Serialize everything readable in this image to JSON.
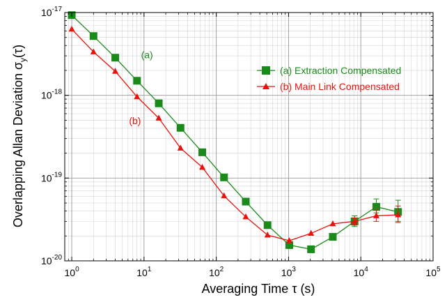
{
  "chart_data": {
    "type": "line",
    "xscale": "log",
    "yscale": "log",
    "xlim": [
      0.8,
      100000
    ],
    "ylim": [
      1e-20,
      1e-17
    ],
    "grid": true,
    "legend_position": "top-right",
    "xlabel": {
      "main": "Averaging Time ",
      "greek": "τ",
      "unit": " (s)"
    },
    "ylabel": {
      "main": "Overlapping Allan Deviation ",
      "sigma": "σ",
      "sub": "y",
      "arg": "(τ)"
    },
    "x_ticks": [
      {
        "value": 1,
        "base": "10",
        "exp": "0"
      },
      {
        "value": 10,
        "base": "10",
        "exp": "1"
      },
      {
        "value": 100,
        "base": "10",
        "exp": "2"
      },
      {
        "value": 1000,
        "base": "10",
        "exp": "3"
      },
      {
        "value": 10000,
        "base": "10",
        "exp": "4"
      },
      {
        "value": 100000,
        "base": "10",
        "exp": "5"
      }
    ],
    "y_ticks": [
      {
        "value": 1e-20,
        "base": "10",
        "exp": "-20"
      },
      {
        "value": 1e-19,
        "base": "10",
        "exp": "-19"
      },
      {
        "value": 1e-18,
        "base": "10",
        "exp": "-18"
      },
      {
        "value": 1e-17,
        "base": "10",
        "exp": "-17"
      }
    ],
    "series": [
      {
        "name": "(a) Extraction Compensated",
        "color": "#1a8a1a",
        "marker": "square",
        "x": [
          1,
          2,
          4,
          8,
          16,
          32,
          64,
          128,
          256,
          512,
          1024,
          2048,
          4096,
          8192,
          16384,
          32768
        ],
        "y": [
          9.3e-18,
          5.2e-18,
          2.85e-18,
          1.5e-18,
          8e-19,
          4.05e-19,
          2.05e-19,
          1.02e-19,
          5.2e-20,
          2.7e-20,
          1.55e-20,
          1.38e-20,
          1.95e-20,
          3e-20,
          4.5e-20,
          3.9e-20
        ],
        "err_low": [
          null,
          null,
          null,
          null,
          null,
          null,
          null,
          null,
          null,
          null,
          null,
          null,
          null,
          2.6e-20,
          3.8e-20,
          3e-20
        ],
        "err_high": [
          null,
          null,
          null,
          null,
          null,
          null,
          null,
          null,
          null,
          null,
          null,
          null,
          null,
          3.5e-20,
          5.6e-20,
          5.4e-20
        ]
      },
      {
        "name": "(b) Main Link Compensated",
        "color": "#e8120c",
        "marker": "triangle",
        "x": [
          1,
          2,
          4,
          8,
          16,
          32,
          64,
          128,
          256,
          512,
          1024,
          2048,
          4096,
          8192,
          16384,
          32768
        ],
        "y": [
          6.3e-18,
          3.35e-18,
          1.95e-18,
          9.6e-19,
          5.3e-19,
          2.3e-19,
          1.35e-19,
          6.1e-20,
          3.4e-20,
          2.05e-20,
          1.75e-20,
          2.15e-20,
          2.8e-20,
          3e-20,
          3.5e-20,
          3.6e-20
        ],
        "err_low": [
          null,
          null,
          null,
          null,
          null,
          null,
          null,
          null,
          null,
          null,
          null,
          null,
          null,
          2.7e-20,
          3e-20,
          2.9e-20
        ],
        "err_high": [
          null,
          null,
          null,
          null,
          null,
          null,
          null,
          null,
          null,
          null,
          null,
          null,
          null,
          3.3e-20,
          4.1e-20,
          4.6e-20
        ]
      }
    ],
    "annotations": [
      {
        "text": "(a)",
        "x": 11,
        "y": 2.8e-18,
        "color": "#1a8a1a"
      },
      {
        "text": "(b)",
        "x": 7.5,
        "y": 4.5e-19,
        "color": "#e8120c"
      }
    ]
  }
}
